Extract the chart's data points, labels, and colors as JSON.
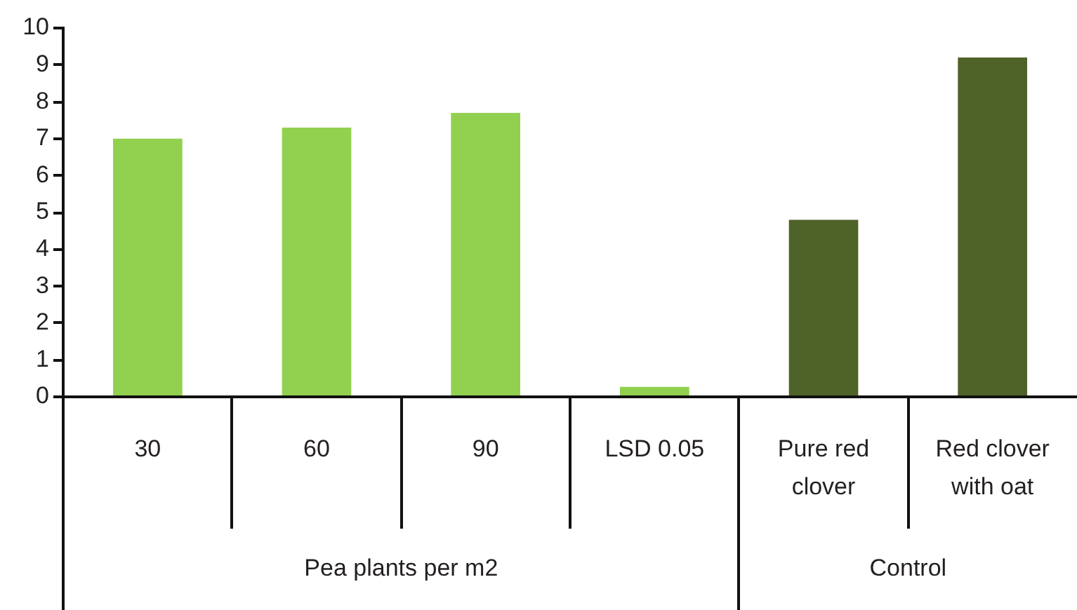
{
  "chart_data": {
    "type": "bar",
    "categories": [
      "30",
      "60",
      "90",
      "LSD 0.05",
      "Pure red clover",
      "Red clover with oat"
    ],
    "values": [
      7.0,
      7.3,
      7.7,
      0.27,
      4.8,
      9.2
    ],
    "colors": [
      "#92d050",
      "#92d050",
      "#92d050",
      "#92d050",
      "#4f6228",
      "#4f6228"
    ],
    "ylim": [
      0,
      10
    ],
    "yticks": [
      0,
      1,
      2,
      3,
      4,
      5,
      6,
      7,
      8,
      9,
      10
    ],
    "annotations": [
      "Pea plants per m2",
      "Control"
    ]
  }
}
